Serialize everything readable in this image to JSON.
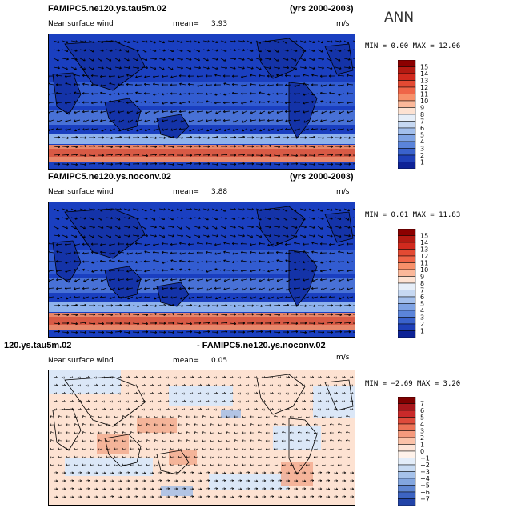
{
  "season": "ANN",
  "panels": [
    {
      "title": "FAMIPC5.ne120.ys.tau5m.02",
      "years": "(yrs 2000-2003)",
      "variable": "Near surface wind",
      "mean_label": "mean=",
      "mean_value": "3.93",
      "units": "m/s",
      "min_label": "MIN =",
      "min_value": "0.00",
      "max_label": "MAX =",
      "max_value": "12.06",
      "colorbar": {
        "labels": [
          "15",
          "14",
          "13",
          "12",
          "11",
          "10",
          "9",
          "8",
          "7",
          "6",
          "5",
          "4",
          "3",
          "2",
          "1"
        ],
        "colors": [
          "#8b0000",
          "#b41a12",
          "#d12a1e",
          "#e34a33",
          "#ef6548",
          "#f7906a",
          "#fbb89a",
          "#fde2d2",
          "#e6eef8",
          "#c6d8f2",
          "#a3bfec",
          "#7fa3e4",
          "#5b84da",
          "#3a62cc",
          "#1f40b8",
          "#0d2296"
        ]
      }
    },
    {
      "title": "FAMIPC5.ne120.ys.noconv.02",
      "years": "(yrs 2000-2003)",
      "variable": "Near surface wind",
      "mean_label": "mean=",
      "mean_value": "3.88",
      "units": "m/s",
      "min_label": "MIN =",
      "min_value": "0.01",
      "max_label": "MAX =",
      "max_value": "11.83",
      "colorbar": {
        "labels": [
          "15",
          "14",
          "13",
          "12",
          "11",
          "10",
          "9",
          "8",
          "7",
          "6",
          "5",
          "4",
          "3",
          "2",
          "1"
        ],
        "colors": [
          "#8b0000",
          "#b41a12",
          "#d12a1e",
          "#e34a33",
          "#ef6548",
          "#f7906a",
          "#fbb89a",
          "#fde2d2",
          "#e6eef8",
          "#c6d8f2",
          "#a3bfec",
          "#7fa3e4",
          "#5b84da",
          "#3a62cc",
          "#1f40b8",
          "#0d2296"
        ]
      }
    },
    {
      "title": "120.ys.tau5m.02",
      "title2": "- FAMIPC5.ne120.ys.noconv.02",
      "variable": "Near surface wind",
      "mean_label": "mean=",
      "mean_value": "0.05",
      "units": "m/s",
      "min_label": "MIN =",
      "min_value": "−2.69",
      "max_label": "MAX =",
      "max_value": "3.20",
      "colorbar": {
        "labels": [
          "7",
          "6",
          "5",
          "4",
          "3",
          "2",
          "1",
          "0",
          "−1",
          "−2",
          "−3",
          "−4",
          "−5",
          "−6",
          "−7"
        ],
        "colors": [
          "#7f0000",
          "#a8161b",
          "#c92a2a",
          "#de4b3b",
          "#ec7357",
          "#f59a7d",
          "#fbc2a8",
          "#fde4d6",
          "#fff2ea",
          "#e3edf9",
          "#c7daf2",
          "#a6c2ea",
          "#83a6df",
          "#5f86d2",
          "#3d64c2",
          "#2244a8"
        ]
      }
    }
  ]
}
